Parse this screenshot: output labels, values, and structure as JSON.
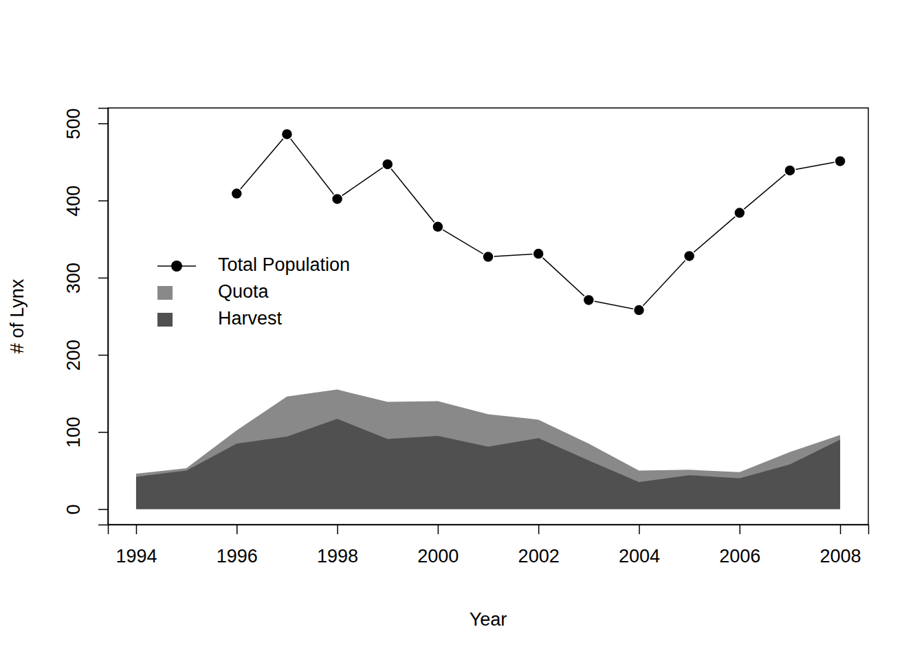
{
  "chart_data": {
    "type": "line",
    "x_label": "Year",
    "y_label": "# of Lynx",
    "x": [
      1994,
      1995,
      1996,
      1997,
      1998,
      1999,
      2000,
      2001,
      2002,
      2003,
      2004,
      2005,
      2006,
      2007,
      2008
    ],
    "series": [
      {
        "name": "Total Population",
        "type": "line",
        "color": "#000000",
        "marker": "circle",
        "line_style": "solid",
        "values": [
          null,
          null,
          409,
          486,
          402,
          447,
          366,
          327,
          331,
          271,
          258,
          328,
          384,
          439,
          451
        ]
      },
      {
        "name": "Quota",
        "type": "area",
        "color": "#898989",
        "values": [
          46,
          53,
          102,
          146,
          155,
          139,
          140,
          123,
          116,
          85,
          50,
          51,
          48,
          74,
          96
        ]
      },
      {
        "name": "Harvest",
        "type": "area",
        "color": "#505050",
        "values": [
          42,
          50,
          85,
          94,
          117,
          91,
          95,
          81,
          92,
          63,
          35,
          44,
          40,
          58,
          90
        ]
      }
    ],
    "xlim": [
      1993.44,
      2008.56
    ],
    "ylim": [
      -20,
      520
    ],
    "xticks": [
      1994,
      1996,
      1998,
      2000,
      2002,
      2004,
      2006,
      2008
    ],
    "yticks": [
      0,
      100,
      200,
      300,
      400,
      500
    ],
    "legend": "left",
    "grid": false
  }
}
